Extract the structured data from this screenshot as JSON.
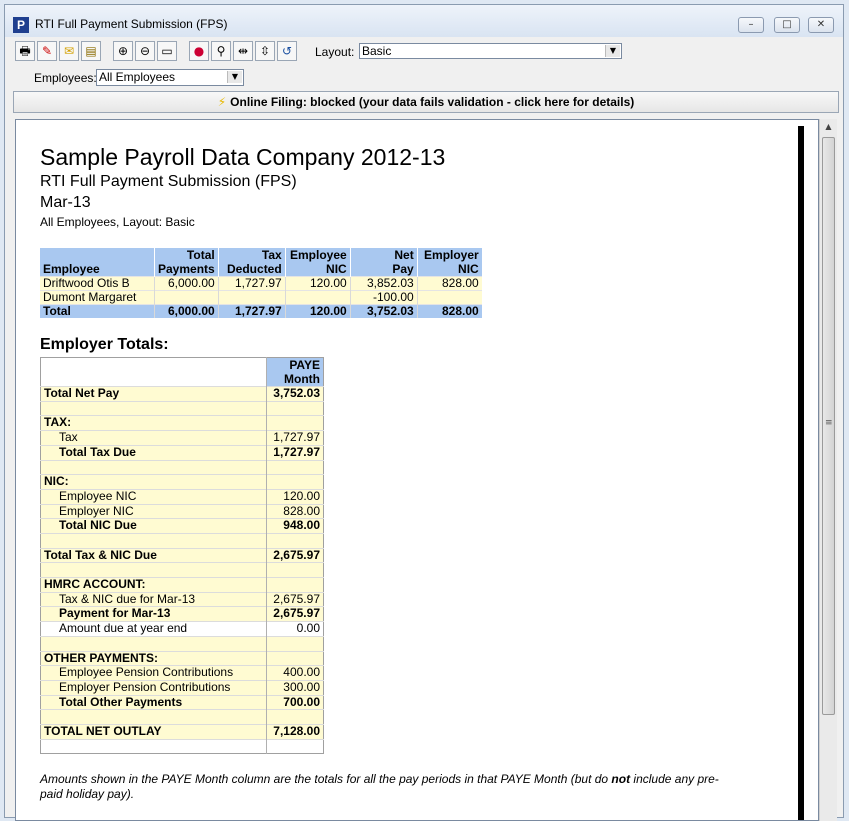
{
  "window": {
    "title": "RTI Full Payment Submission (FPS)"
  },
  "toolbar": {
    "layout_label": "Layout:",
    "layout_value": "Basic",
    "employees_label": "Employees:",
    "employees_value": "All Employees"
  },
  "banner": {
    "text": "Online Filing: blocked (your data fails validation - click here for details)"
  },
  "report": {
    "company": "Sample Payroll Data Company 2012-13",
    "subtitle": "RTI Full Payment Submission (FPS)",
    "month": "Mar-13",
    "filter": "All Employees, Layout: Basic",
    "employee_table": {
      "headers": [
        [
          "",
          "Employee"
        ],
        [
          "Total",
          "Payments"
        ],
        [
          "Tax",
          "Deducted"
        ],
        [
          "Employee",
          "NIC"
        ],
        [
          "Net",
          "Pay"
        ],
        [
          "Employer",
          "NIC"
        ]
      ],
      "rows": [
        [
          "Driftwood Otis B",
          "6,000.00",
          "1,727.97",
          "120.00",
          "3,852.03",
          "828.00"
        ],
        [
          "Dumont Margaret",
          "",
          "",
          "",
          "-100.00",
          ""
        ]
      ],
      "total": [
        "Total",
        "6,000.00",
        "1,727.97",
        "120.00",
        "3,752.03",
        "828.00"
      ]
    },
    "employer_totals_heading": "Employer Totals:",
    "totals_header": [
      "PAYE",
      "Month"
    ],
    "totals_rows": [
      {
        "label": "Total Net Pay",
        "value": "3,752.03",
        "style": "bold"
      },
      {
        "label": "",
        "value": "",
        "style": "blank"
      },
      {
        "label": "TAX:",
        "value": "",
        "style": "bold-section"
      },
      {
        "label": "Tax",
        "value": "1,727.97",
        "style": "indent"
      },
      {
        "label": "Total Tax Due",
        "value": "1,727.97",
        "style": "indent-bold"
      },
      {
        "label": "",
        "value": "",
        "style": "blank"
      },
      {
        "label": "NIC:",
        "value": "",
        "style": "bold-section"
      },
      {
        "label": "Employee NIC",
        "value": "120.00",
        "style": "indent"
      },
      {
        "label": "Employer NIC",
        "value": "828.00",
        "style": "indent"
      },
      {
        "label": "Total NIC Due",
        "value": "948.00",
        "style": "indent-bold"
      },
      {
        "label": "",
        "value": "",
        "style": "blank"
      },
      {
        "label": "Total Tax & NIC Due",
        "value": "2,675.97",
        "style": "bold"
      },
      {
        "label": "",
        "value": "",
        "style": "blank"
      },
      {
        "label": "HMRC ACCOUNT:",
        "value": "",
        "style": "bold-section"
      },
      {
        "label": "Tax & NIC due for Mar-13",
        "value": "2,675.97",
        "style": "indent"
      },
      {
        "label": "Payment for Mar-13",
        "value": "2,675.97",
        "style": "indent-bold"
      },
      {
        "label": "Amount due at year end",
        "value": "0.00",
        "style": "indent-white"
      },
      {
        "label": "",
        "value": "",
        "style": "blank"
      },
      {
        "label": "OTHER PAYMENTS:",
        "value": "",
        "style": "bold-section"
      },
      {
        "label": "Employee Pension Contributions",
        "value": "400.00",
        "style": "indent"
      },
      {
        "label": "Employer Pension Contributions",
        "value": "300.00",
        "style": "indent"
      },
      {
        "label": "Total Other Payments",
        "value": "700.00",
        "style": "indent-bold"
      },
      {
        "label": "",
        "value": "",
        "style": "blank"
      },
      {
        "label": "TOTAL NET OUTLAY",
        "value": "7,128.00",
        "style": "bold"
      },
      {
        "label": "",
        "value": "",
        "style": "white"
      }
    ],
    "footnote_pre": "Amounts shown in the PAYE Month column are the totals for all the pay periods in that PAYE Month (but do ",
    "footnote_bold": "not",
    "footnote_post": " include any pre-paid holiday pay)."
  }
}
